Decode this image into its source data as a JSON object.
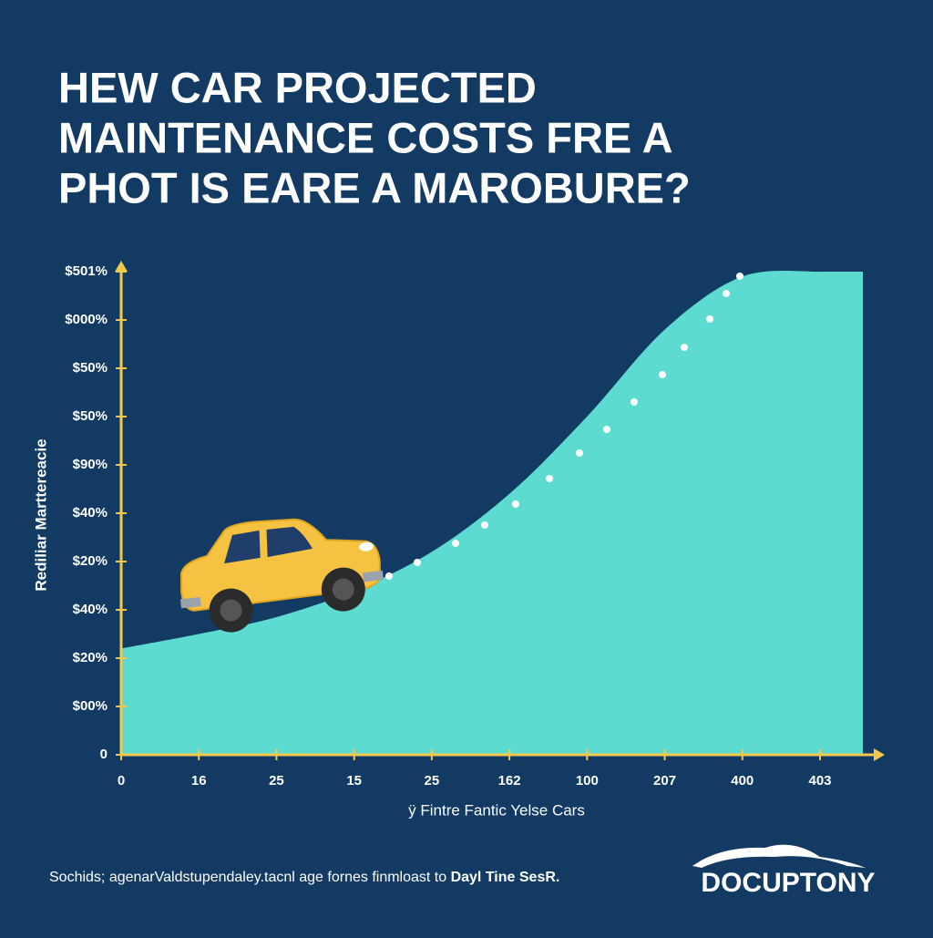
{
  "chart_data": {
    "type": "area",
    "title": [
      "HEW CAR PROJECTED",
      "MAINTENANCE COSTS FRE A",
      "PHOT IS EARE A MAROBURE?"
    ],
    "y_label": "Rediliar Marttereacie",
    "x_label": "ÿ Fintre Fantic Yelse Cars",
    "categories": [
      "0",
      "16",
      "25",
      "15",
      "25",
      "162",
      "100",
      "207",
      "400",
      "403"
    ],
    "values": [
      2.2,
      2.5,
      2.85,
      3.4,
      4.2,
      5.4,
      7.0,
      8.8,
      9.9,
      10
    ],
    "color": "#5ddbd0",
    "axis_color": "#f2c94c",
    "ylim": [
      0,
      10
    ],
    "yticks": [
      {
        "value": 0,
        "label": "0"
      },
      {
        "value": 1,
        "label": "$00%"
      },
      {
        "value": 2,
        "label": "$20%"
      },
      {
        "value": 3,
        "label": "$40%"
      },
      {
        "value": 4,
        "label": "$20%"
      },
      {
        "value": 5,
        "label": "$40%"
      },
      {
        "value": 6,
        "label": "$90%"
      },
      {
        "value": 7,
        "label": "$50%"
      },
      {
        "value": 8,
        "label": "$50%"
      },
      {
        "value": 9,
        "label": "$000%"
      },
      {
        "value": 10,
        "label": "$501%"
      }
    ],
    "source": "Sochids; agenarValdstupendaley.tacnl age fornes finmloast to ",
    "source_emphasis": "Dayl Tine SesR.",
    "logo": "DOCUPTONY"
  }
}
